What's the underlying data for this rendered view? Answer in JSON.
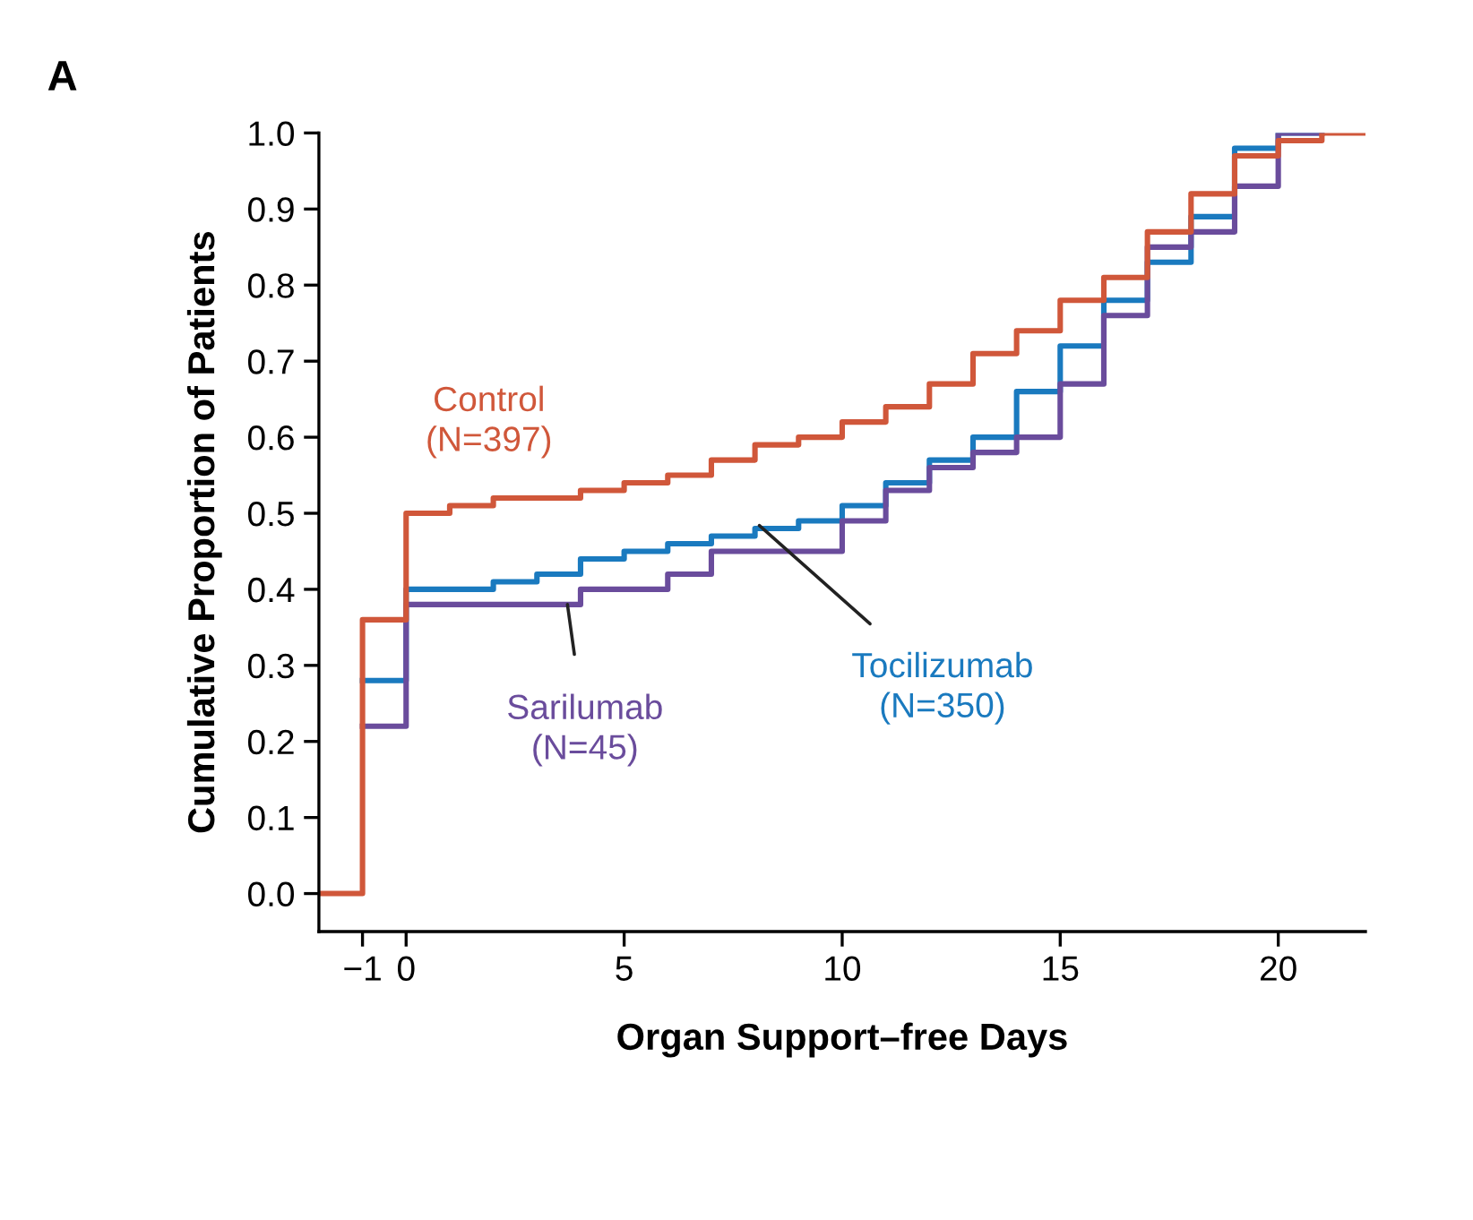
{
  "chart_data": {
    "type": "step",
    "xlabel": "Organ Support–free Days",
    "ylabel": "Cumulative Proportion of Patients",
    "xlim": [
      -2,
      22
    ],
    "xticks": [
      {
        "value": -1,
        "label": "−1"
      },
      0,
      5,
      10,
      15,
      20
    ],
    "ylim": [
      -0.05,
      1.0
    ],
    "yticks": [
      {
        "value": 0,
        "label": "0.0"
      },
      0.1,
      0.2,
      0.3,
      0.4,
      0.5,
      0.6,
      0.7,
      0.8,
      0.9,
      {
        "value": 1,
        "label": "1.0"
      }
    ],
    "grid": false,
    "legend": false,
    "series": [
      {
        "name": "Tocilizumab\n(N=350)",
        "color": "#1a7abf",
        "x": [
          -1,
          0,
          1,
          2,
          3,
          4,
          5,
          6,
          7,
          8,
          9,
          10,
          11,
          12,
          13,
          14,
          15,
          16,
          17,
          18,
          19,
          20,
          21
        ],
        "values": [
          0.28,
          0.4,
          0.4,
          0.41,
          0.42,
          0.44,
          0.45,
          0.46,
          0.47,
          0.48,
          0.49,
          0.51,
          0.54,
          0.57,
          0.6,
          0.66,
          0.72,
          0.78,
          0.83,
          0.89,
          0.98,
          1.0,
          1.0
        ]
      },
      {
        "name": "Sarilumab\n(N=45)",
        "color": "#6a4c9c",
        "x": [
          -1,
          0,
          1,
          2,
          3,
          4,
          5,
          6,
          7,
          8,
          9,
          10,
          11,
          12,
          13,
          14,
          15,
          16,
          17,
          18,
          19,
          20,
          21
        ],
        "values": [
          0.22,
          0.38,
          0.38,
          0.38,
          0.38,
          0.4,
          0.4,
          0.42,
          0.45,
          0.45,
          0.45,
          0.49,
          0.53,
          0.56,
          0.58,
          0.6,
          0.67,
          0.76,
          0.85,
          0.87,
          0.93,
          1.0,
          1.0
        ]
      },
      {
        "name": "Control\n(N=397)",
        "color": "#d0573a",
        "x": [
          -2,
          -1,
          0,
          1,
          2,
          3,
          4,
          5,
          6,
          7,
          8,
          9,
          10,
          11,
          12,
          13,
          14,
          15,
          16,
          17,
          18,
          19,
          20,
          21,
          22
        ],
        "values": [
          0,
          0.36,
          0.5,
          0.51,
          0.52,
          0.52,
          0.53,
          0.54,
          0.55,
          0.57,
          0.59,
          0.6,
          0.62,
          0.64,
          0.67,
          0.71,
          0.74,
          0.78,
          0.81,
          0.87,
          0.92,
          0.97,
          0.99,
          1.0,
          1.0
        ]
      }
    ],
    "annotations": [
      "A"
    ]
  }
}
